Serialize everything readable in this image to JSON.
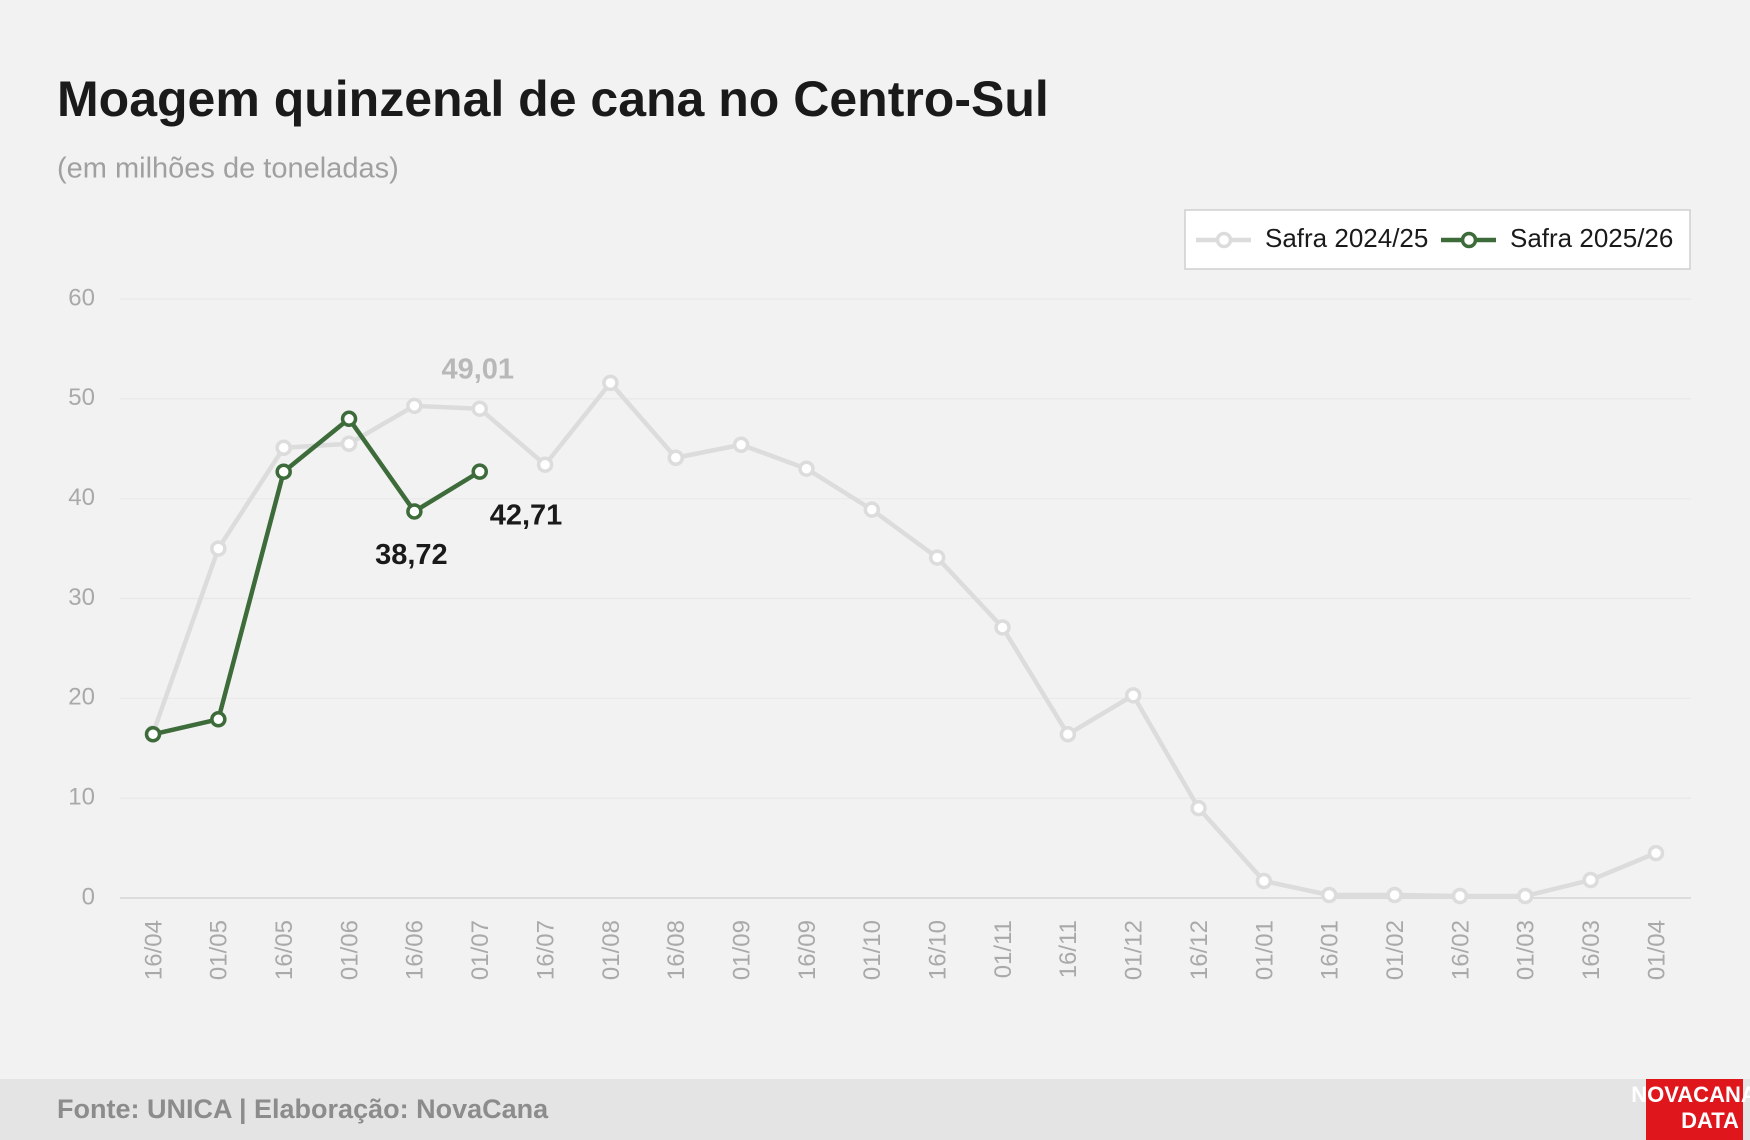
{
  "chart_data": {
    "type": "line",
    "title": "Moagem quinzenal de cana no Centro-Sul",
    "subtitle": "(em milhões de toneladas)",
    "source": "Fonte: UNICA | Elaboração: NovaCana",
    "logo": [
      "NOVACANA",
      "DATA"
    ],
    "categories": [
      "16/04",
      "01/05",
      "16/05",
      "01/06",
      "16/06",
      "01/07",
      "16/07",
      "01/08",
      "16/08",
      "01/09",
      "16/09",
      "01/10",
      "16/10",
      "01/11",
      "16/11",
      "01/12",
      "16/12",
      "01/01",
      "16/01",
      "01/02",
      "16/02",
      "01/03",
      "16/03",
      "01/04"
    ],
    "series": [
      {
        "name": "Safra 2024/25",
        "color": "#dcdcdc",
        "values": [
          16.5,
          35.0,
          45.1,
          45.5,
          49.3,
          49.01,
          43.4,
          51.6,
          44.1,
          45.4,
          43.0,
          38.9,
          34.1,
          27.1,
          16.4,
          20.3,
          9.0,
          1.7,
          0.3,
          0.3,
          0.2,
          0.2,
          1.8,
          4.5
        ],
        "value_labels": [
          null,
          null,
          null,
          null,
          null,
          "49,01",
          null,
          null,
          null,
          null,
          null,
          null,
          null,
          null,
          null,
          null,
          null,
          null,
          null,
          null,
          null,
          null,
          null,
          null
        ]
      },
      {
        "name": "Safra 2025/26",
        "color": "#3d6b3a",
        "values": [
          16.4,
          17.9,
          42.7,
          48.0,
          38.72,
          42.71,
          null,
          null,
          null,
          null,
          null,
          null,
          null,
          null,
          null,
          null,
          null,
          null,
          null,
          null,
          null,
          null,
          null,
          null
        ],
        "value_labels": [
          null,
          null,
          null,
          null,
          "38,72",
          "42,71",
          null,
          null,
          null,
          null,
          null,
          null,
          null,
          null,
          null,
          null,
          null,
          null,
          null,
          null,
          null,
          null,
          null,
          null
        ]
      }
    ],
    "ylim": [
      0,
      60
    ],
    "yticks": [
      0,
      10,
      20,
      30,
      40,
      50,
      60
    ],
    "grid": true,
    "legend": "top-right"
  }
}
